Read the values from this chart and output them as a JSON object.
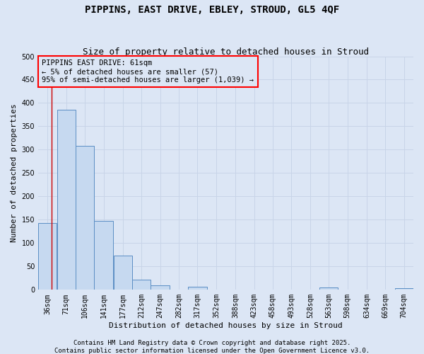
{
  "title": "PIPPINS, EAST DRIVE, EBLEY, STROUD, GL5 4QF",
  "subtitle": "Size of property relative to detached houses in Stroud",
  "xlabel": "Distribution of detached houses by size in Stroud",
  "ylabel": "Number of detached properties",
  "footer_line1": "Contains HM Land Registry data © Crown copyright and database right 2025.",
  "footer_line2": "Contains public sector information licensed under the Open Government Licence v3.0.",
  "annotation_title": "PIPPINS EAST DRIVE: 61sqm",
  "annotation_line2": "← 5% of detached houses are smaller (57)",
  "annotation_line3": "95% of semi-detached houses are larger (1,039) →",
  "bar_edges": [
    36,
    71,
    106,
    141,
    177,
    212,
    247,
    282,
    317,
    352,
    388,
    423,
    458,
    493,
    528,
    563,
    598,
    634,
    669,
    704,
    739
  ],
  "bar_heights": [
    143,
    385,
    308,
    148,
    73,
    22,
    10,
    0,
    7,
    0,
    0,
    0,
    0,
    0,
    0,
    5,
    0,
    0,
    0,
    3
  ],
  "bar_color": "#c6d9f0",
  "bar_edge_color": "#5b8ec4",
  "grid_color": "#c8d4e8",
  "background_color": "#dce6f5",
  "marker_color": "#cc0000",
  "ylim": [
    0,
    500
  ],
  "yticks": [
    0,
    50,
    100,
    150,
    200,
    250,
    300,
    350,
    400,
    450,
    500
  ],
  "title_fontsize": 10,
  "subtitle_fontsize": 9,
  "axis_label_fontsize": 8,
  "tick_fontsize": 7,
  "footer_fontsize": 6.5,
  "annotation_fontsize": 7.5
}
